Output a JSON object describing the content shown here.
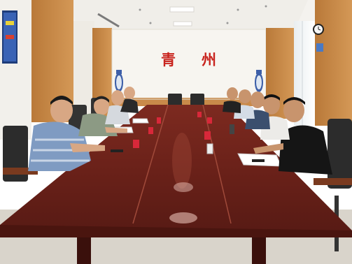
{
  "photo": {
    "wall_characters": [
      "青",
      "州"
    ]
  },
  "colors": {
    "wall": "#eeebe4",
    "panel": "#f7f5f0",
    "wood": "#c98a4a",
    "table": "#6e231b",
    "table_highlight": "#a04a3a",
    "chair": "#2c2c2c",
    "floor": "#d9d4cb",
    "ceiling": "#f4f2ee",
    "calligraphy_red": "#c8231d"
  }
}
